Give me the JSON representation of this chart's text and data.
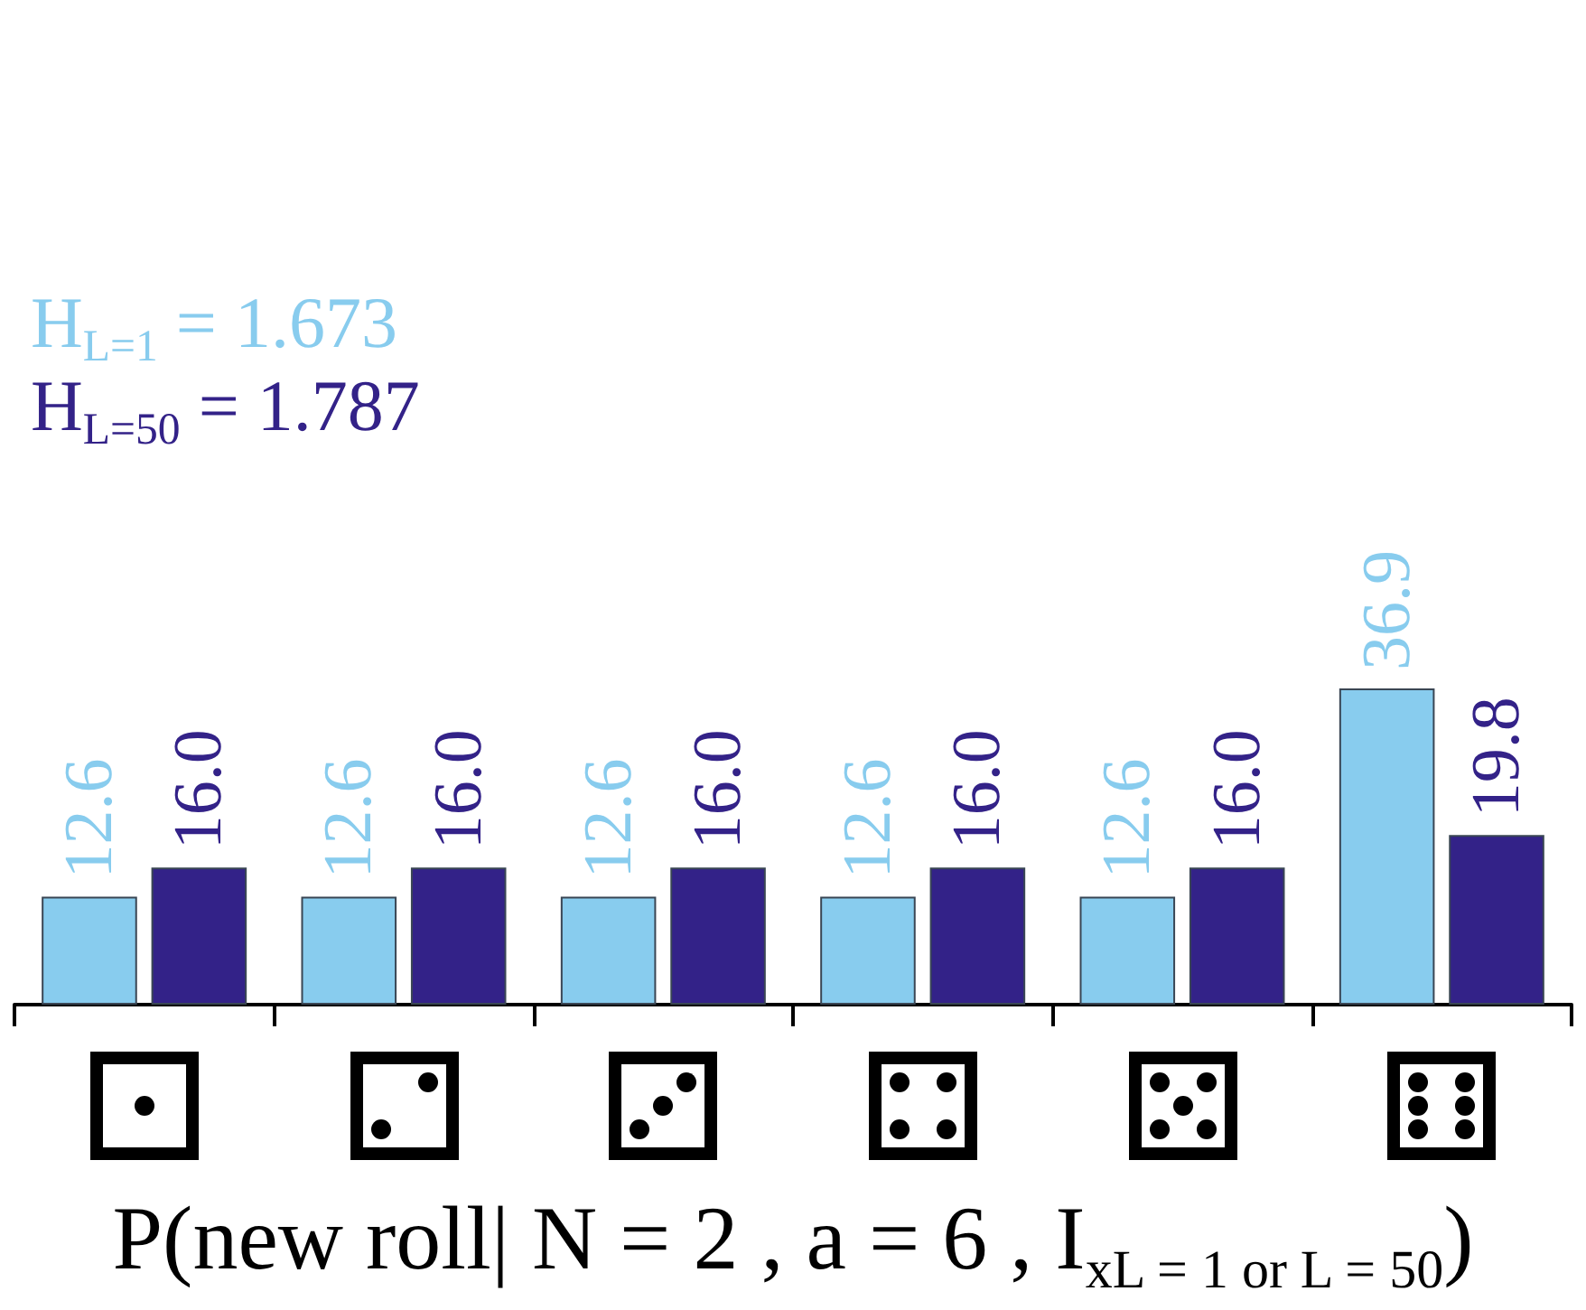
{
  "chart_data": {
    "type": "bar",
    "categories": [
      null,
      null,
      null,
      null,
      null,
      null
    ],
    "series": [
      {
        "color": "#88ccee",
        "values": [
          12.6,
          12.6,
          12.6,
          12.6,
          12.6,
          36.9
        ],
        "value_labels": [
          "12.6",
          "12.6",
          "12.6",
          "12.6",
          "12.6",
          "36.9"
        ]
      },
      {
        "color": "#332288",
        "values": [
          16.0,
          16.0,
          16.0,
          16.0,
          16.0,
          19.8
        ],
        "value_labels": [
          "16.0",
          "16.0",
          "16.0",
          "16.0",
          "16.0",
          "19.8"
        ]
      }
    ],
    "xlabel": "P(new roll| N = 2 , a = 6 , I$_{xL = 1 or L = 50}$)",
    "annotations": [
      "H$_{L=1}$ = 1.673",
      "H$_{L=50}$ = 1.787"
    ]
  }
}
